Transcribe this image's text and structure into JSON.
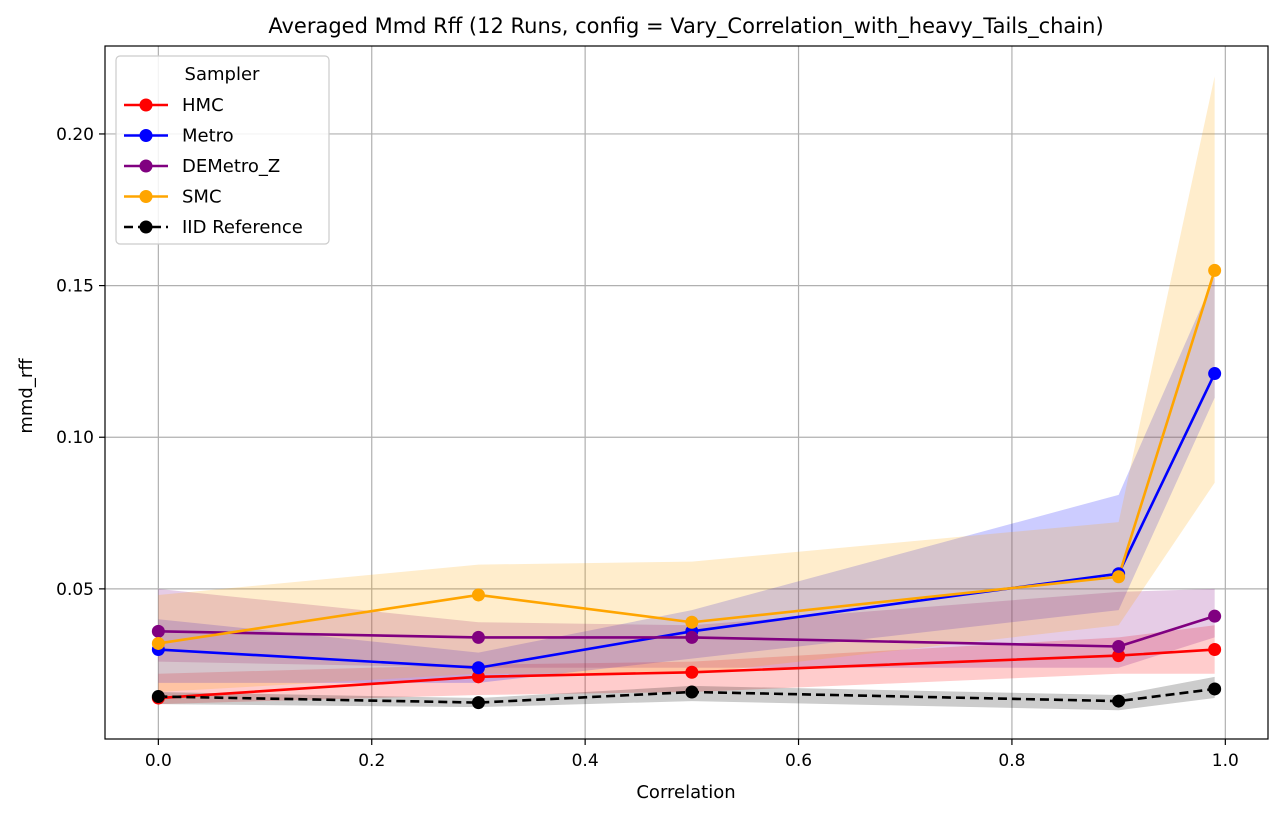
{
  "chart_data": {
    "type": "line",
    "title": "Averaged Mmd Rff (12 Runs, config = Vary_Correlation_with_heavy_Tails_chain)",
    "xlabel": "Correlation",
    "ylabel": "mmd_rff",
    "xlim": [
      -0.05,
      1.04
    ],
    "ylim": [
      0.0005,
      0.229
    ],
    "xticks": [
      0.0,
      0.2,
      0.4,
      0.6,
      0.8,
      1.0
    ],
    "xtick_labels": [
      "0.0",
      "0.2",
      "0.4",
      "0.6",
      "0.8",
      "1.0"
    ],
    "yticks": [
      0.05,
      0.1,
      0.15,
      0.2
    ],
    "ytick_labels": [
      "0.05",
      "0.10",
      "0.15",
      "0.20"
    ],
    "grid": true,
    "legend": {
      "title": "Sampler",
      "placement": "top-left"
    },
    "x": [
      0.0,
      0.3,
      0.5,
      0.9,
      0.99
    ],
    "series": [
      {
        "name": "HMC",
        "color": "#ff0000",
        "dashed": false,
        "values": [
          0.014,
          0.021,
          0.0225,
          0.028,
          0.03
        ],
        "lower": [
          0.012,
          0.015,
          0.016,
          0.022,
          0.022
        ],
        "upper": [
          0.022,
          0.025,
          0.026,
          0.034,
          0.038
        ]
      },
      {
        "name": "Metro",
        "color": "#0000ff",
        "dashed": false,
        "values": [
          0.03,
          0.024,
          0.036,
          0.055,
          0.121
        ],
        "lower": [
          0.019,
          0.019,
          0.027,
          0.043,
          0.113
        ],
        "upper": [
          0.04,
          0.029,
          0.043,
          0.081,
          0.153
        ]
      },
      {
        "name": "DEMetro_Z",
        "color": "#800080",
        "dashed": false,
        "values": [
          0.036,
          0.034,
          0.034,
          0.031,
          0.041
        ],
        "lower": [
          0.026,
          0.024,
          0.024,
          0.024,
          0.034
        ],
        "upper": [
          0.05,
          0.039,
          0.038,
          0.049,
          0.05
        ]
      },
      {
        "name": "SMC",
        "color": "#ffa500",
        "dashed": false,
        "values": [
          0.032,
          0.048,
          0.039,
          0.054,
          0.155
        ],
        "lower": [
          0.016,
          0.022,
          0.022,
          0.038,
          0.085
        ],
        "upper": [
          0.048,
          0.058,
          0.059,
          0.072,
          0.219
        ]
      },
      {
        "name": "IID Reference",
        "color": "#000000",
        "dashed": true,
        "values": [
          0.0145,
          0.0125,
          0.016,
          0.013,
          0.017
        ],
        "lower": [
          0.012,
          0.011,
          0.013,
          0.01,
          0.014
        ],
        "upper": [
          0.016,
          0.014,
          0.018,
          0.015,
          0.021
        ]
      }
    ]
  }
}
